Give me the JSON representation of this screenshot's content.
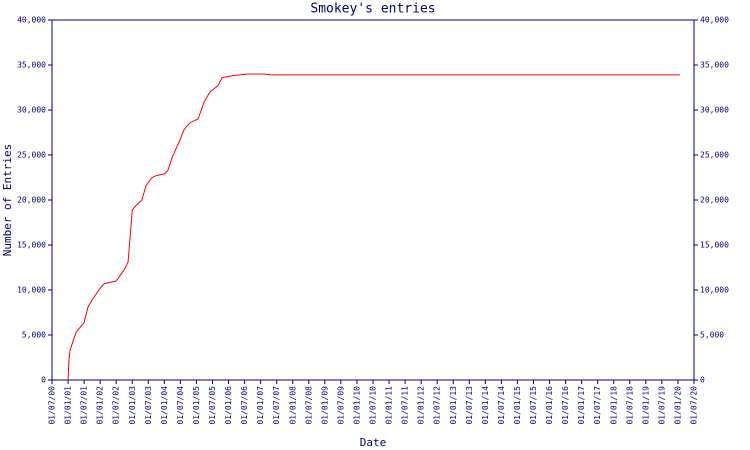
{
  "chart_data": {
    "type": "line",
    "title": "Smokey's entries",
    "xlabel": "Date",
    "ylabel": "Number of Entries",
    "series": [
      {
        "name": "Smokey",
        "color": "#ff0000",
        "x": [
          2001.0,
          2001.03,
          2001.06,
          2001.25,
          2001.5,
          2001.62,
          2001.75,
          2002.0,
          2002.12,
          2002.5,
          2002.74,
          2002.87,
          2003.0,
          2003.12,
          2003.3,
          2003.43,
          2003.62,
          2003.74,
          2004.0,
          2004.11,
          2004.24,
          2004.49,
          2004.61,
          2004.8,
          2005.05,
          2005.24,
          2005.42,
          2005.67,
          2005.8,
          2006.11,
          2006.61,
          2007.1,
          2007.29,
          2020.06
        ],
        "values": [
          0,
          2200,
          3300,
          5300,
          6400,
          8100,
          8900,
          10200,
          10700,
          11000,
          12200,
          13100,
          18900,
          19400,
          20000,
          21600,
          22500,
          22700,
          22900,
          23300,
          24700,
          26700,
          27800,
          28600,
          29000,
          30900,
          32000,
          32700,
          33600,
          33800,
          34000,
          34000,
          33900,
          33900
        ]
      }
    ],
    "xlim": [
      2000.5,
      2020.5
    ],
    "ylim": [
      0,
      40000
    ],
    "xticks": [
      {
        "value": 2000.5,
        "label": "01/07/00"
      },
      {
        "value": 2001.0,
        "label": "01/01/01"
      },
      {
        "value": 2001.5,
        "label": "01/07/01"
      },
      {
        "value": 2002.0,
        "label": "01/01/02"
      },
      {
        "value": 2002.5,
        "label": "01/07/02"
      },
      {
        "value": 2003.0,
        "label": "01/01/03"
      },
      {
        "value": 2003.5,
        "label": "01/07/03"
      },
      {
        "value": 2004.0,
        "label": "01/01/04"
      },
      {
        "value": 2004.5,
        "label": "01/07/04"
      },
      {
        "value": 2005.0,
        "label": "01/01/05"
      },
      {
        "value": 2005.5,
        "label": "01/07/05"
      },
      {
        "value": 2006.0,
        "label": "01/01/06"
      },
      {
        "value": 2006.5,
        "label": "01/07/06"
      },
      {
        "value": 2007.0,
        "label": "01/01/07"
      },
      {
        "value": 2007.5,
        "label": "01/07/07"
      },
      {
        "value": 2008.0,
        "label": "01/01/08"
      },
      {
        "value": 2008.5,
        "label": "01/07/08"
      },
      {
        "value": 2009.0,
        "label": "01/01/09"
      },
      {
        "value": 2009.5,
        "label": "01/07/09"
      },
      {
        "value": 2010.0,
        "label": "01/01/10"
      },
      {
        "value": 2010.5,
        "label": "01/07/10"
      },
      {
        "value": 2011.0,
        "label": "01/01/11"
      },
      {
        "value": 2011.5,
        "label": "01/07/11"
      },
      {
        "value": 2012.0,
        "label": "01/01/12"
      },
      {
        "value": 2012.5,
        "label": "01/07/12"
      },
      {
        "value": 2013.0,
        "label": "01/01/13"
      },
      {
        "value": 2013.5,
        "label": "01/07/13"
      },
      {
        "value": 2014.0,
        "label": "01/01/14"
      },
      {
        "value": 2014.5,
        "label": "01/07/14"
      },
      {
        "value": 2015.0,
        "label": "01/01/15"
      },
      {
        "value": 2015.5,
        "label": "01/07/15"
      },
      {
        "value": 2016.0,
        "label": "01/01/16"
      },
      {
        "value": 2016.5,
        "label": "01/07/16"
      },
      {
        "value": 2017.0,
        "label": "01/01/17"
      },
      {
        "value": 2017.5,
        "label": "01/07/17"
      },
      {
        "value": 2018.0,
        "label": "01/01/18"
      },
      {
        "value": 2018.5,
        "label": "01/07/18"
      },
      {
        "value": 2019.0,
        "label": "01/01/19"
      },
      {
        "value": 2019.5,
        "label": "01/07/19"
      },
      {
        "value": 2020.0,
        "label": "01/01/20"
      },
      {
        "value": 2020.5,
        "label": "01/07/20"
      }
    ],
    "yticks": [
      0,
      {
        "value": 5000,
        "label": "5,000"
      },
      {
        "value": 10000,
        "label": "10,000"
      },
      {
        "value": 15000,
        "label": "15,000"
      },
      {
        "value": 20000,
        "label": "20,000"
      },
      {
        "value": 25000,
        "label": "25,000"
      },
      {
        "value": 30000,
        "label": "30,000"
      },
      {
        "value": 35000,
        "label": "35,000"
      },
      {
        "value": 40000,
        "label": "40,000"
      }
    ],
    "grid": false,
    "axis_color": "#000080"
  }
}
